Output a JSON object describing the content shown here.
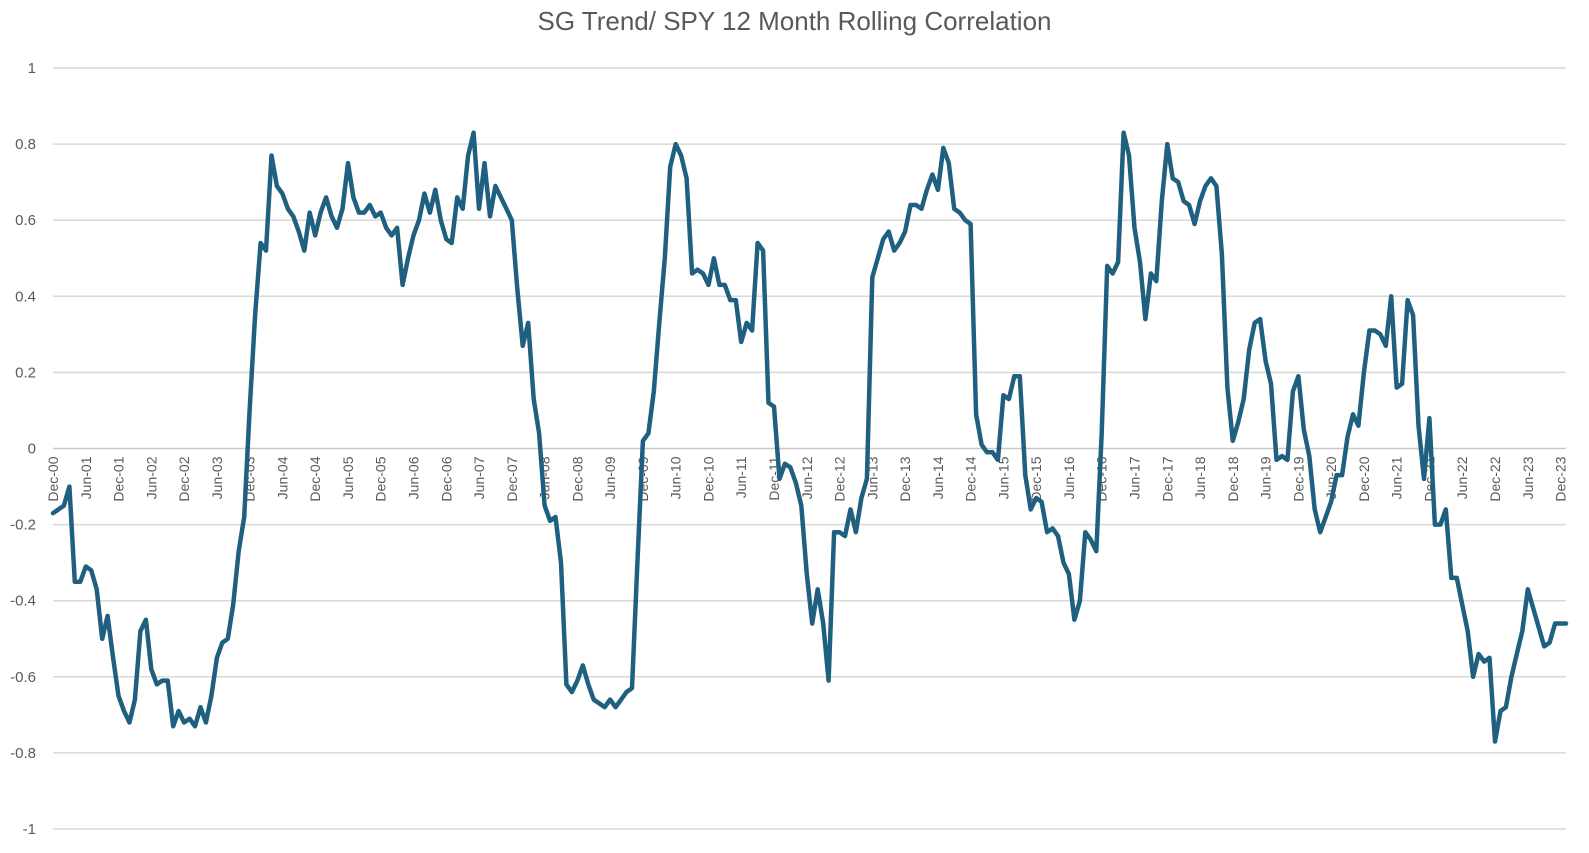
{
  "chart_data": {
    "type": "line",
    "title": "SG Trend/ SPY 12 Month Rolling Correlation",
    "xlabel": "",
    "ylabel": "",
    "ylim": [
      -1,
      1
    ],
    "yticks": [
      "1",
      "0.8",
      "0.6",
      "0.4",
      "0.2",
      "0",
      "-0.2",
      "-0.4",
      "-0.6",
      "-0.8",
      "-1"
    ],
    "xticks": [
      "Dec-00",
      "Jun-01",
      "Dec-01",
      "Jun-02",
      "Dec-02",
      "Jun-03",
      "Dec-03",
      "Jun-04",
      "Dec-04",
      "Jun-05",
      "Dec-05",
      "Jun-06",
      "Dec-06",
      "Jun-07",
      "Dec-07",
      "Jun-08",
      "Dec-08",
      "Jun-09",
      "Dec-09",
      "Jun-10",
      "Dec-10",
      "Jun-11",
      "Dec-11",
      "Jun-12",
      "Dec-12",
      "Jun-13",
      "Dec-13",
      "Jun-14",
      "Dec-14",
      "Jun-15",
      "Dec-15",
      "Jun-16",
      "Dec-16",
      "Jun-17",
      "Dec-17",
      "Jun-18",
      "Dec-18",
      "Jun-19",
      "Dec-19",
      "Jun-20",
      "Dec-20",
      "Jun-21",
      "Dec-21",
      "Jun-22",
      "Dec-22",
      "Jun-23",
      "Dec-23"
    ],
    "grid": true,
    "legend": "none",
    "series": [
      {
        "color": "#1f6080",
        "points": [
          [
            "2000-12",
            -0.17
          ],
          [
            "2001-01",
            -0.16
          ],
          [
            "2001-02",
            -0.15
          ],
          [
            "2001-03",
            -0.1
          ],
          [
            "2001-04",
            -0.35
          ],
          [
            "2001-05",
            -0.35
          ],
          [
            "2001-06",
            -0.31
          ],
          [
            "2001-07",
            -0.32
          ],
          [
            "2001-08",
            -0.37
          ],
          [
            "2001-09",
            -0.5
          ],
          [
            "2001-10",
            -0.44
          ],
          [
            "2001-11",
            -0.55
          ],
          [
            "2001-12",
            -0.65
          ],
          [
            "2002-01",
            -0.69
          ],
          [
            "2002-02",
            -0.72
          ],
          [
            "2002-03",
            -0.66
          ],
          [
            "2002-04",
            -0.48
          ],
          [
            "2002-05",
            -0.45
          ],
          [
            "2002-06",
            -0.58
          ],
          [
            "2002-07",
            -0.62
          ],
          [
            "2002-08",
            -0.61
          ],
          [
            "2002-09",
            -0.61
          ],
          [
            "2002-10",
            -0.73
          ],
          [
            "2002-11",
            -0.69
          ],
          [
            "2002-12",
            -0.72
          ],
          [
            "2003-01",
            -0.71
          ],
          [
            "2003-02",
            -0.73
          ],
          [
            "2003-03",
            -0.68
          ],
          [
            "2003-04",
            -0.72
          ],
          [
            "2003-05",
            -0.65
          ],
          [
            "2003-06",
            -0.55
          ],
          [
            "2003-07",
            -0.51
          ],
          [
            "2003-08",
            -0.5
          ],
          [
            "2003-09",
            -0.41
          ],
          [
            "2003-10",
            -0.27
          ],
          [
            "2003-11",
            -0.18
          ],
          [
            "2003-12",
            0.1
          ],
          [
            "2004-01",
            0.35
          ],
          [
            "2004-02",
            0.54
          ],
          [
            "2004-03",
            0.52
          ],
          [
            "2004-04",
            0.77
          ],
          [
            "2004-05",
            0.69
          ],
          [
            "2004-06",
            0.67
          ],
          [
            "2004-07",
            0.63
          ],
          [
            "2004-08",
            0.61
          ],
          [
            "2004-09",
            0.57
          ],
          [
            "2004-10",
            0.52
          ],
          [
            "2004-11",
            0.62
          ],
          [
            "2004-12",
            0.56
          ],
          [
            "2005-01",
            0.62
          ],
          [
            "2005-02",
            0.66
          ],
          [
            "2005-03",
            0.61
          ],
          [
            "2005-04",
            0.58
          ],
          [
            "2005-05",
            0.63
          ],
          [
            "2005-06",
            0.75
          ],
          [
            "2005-07",
            0.66
          ],
          [
            "2005-08",
            0.62
          ],
          [
            "2005-09",
            0.62
          ],
          [
            "2005-10",
            0.64
          ],
          [
            "2005-11",
            0.61
          ],
          [
            "2005-12",
            0.62
          ],
          [
            "2006-01",
            0.58
          ],
          [
            "2006-02",
            0.56
          ],
          [
            "2006-03",
            0.58
          ],
          [
            "2006-04",
            0.43
          ],
          [
            "2006-05",
            0.5
          ],
          [
            "2006-06",
            0.56
          ],
          [
            "2006-07",
            0.6
          ],
          [
            "2006-08",
            0.67
          ],
          [
            "2006-09",
            0.62
          ],
          [
            "2006-10",
            0.68
          ],
          [
            "2006-11",
            0.6
          ],
          [
            "2006-12",
            0.55
          ],
          [
            "2007-01",
            0.54
          ],
          [
            "2007-02",
            0.66
          ],
          [
            "2007-03",
            0.63
          ],
          [
            "2007-04",
            0.77
          ],
          [
            "2007-05",
            0.83
          ],
          [
            "2007-06",
            0.63
          ],
          [
            "2007-07",
            0.75
          ],
          [
            "2007-08",
            0.61
          ],
          [
            "2007-09",
            0.69
          ],
          [
            "2007-10",
            0.66
          ],
          [
            "2007-11",
            0.63
          ],
          [
            "2007-12",
            0.6
          ],
          [
            "2008-01",
            0.42
          ],
          [
            "2008-02",
            0.27
          ],
          [
            "2008-03",
            0.33
          ],
          [
            "2008-04",
            0.13
          ],
          [
            "2008-05",
            0.04
          ],
          [
            "2008-06",
            -0.15
          ],
          [
            "2008-07",
            -0.19
          ],
          [
            "2008-08",
            -0.18
          ],
          [
            "2008-09",
            -0.3
          ],
          [
            "2008-10",
            -0.62
          ],
          [
            "2008-11",
            -0.64
          ],
          [
            "2008-12",
            -0.61
          ],
          [
            "2009-01",
            -0.57
          ],
          [
            "2009-02",
            -0.62
          ],
          [
            "2009-03",
            -0.66
          ],
          [
            "2009-04",
            -0.67
          ],
          [
            "2009-05",
            -0.68
          ],
          [
            "2009-06",
            -0.66
          ],
          [
            "2009-07",
            -0.68
          ],
          [
            "2009-08",
            -0.66
          ],
          [
            "2009-09",
            -0.64
          ],
          [
            "2009-10",
            -0.63
          ],
          [
            "2009-11",
            -0.3
          ],
          [
            "2009-12",
            0.02
          ],
          [
            "2010-01",
            0.04
          ],
          [
            "2010-02",
            0.15
          ],
          [
            "2010-03",
            0.33
          ],
          [
            "2010-04",
            0.5
          ],
          [
            "2010-05",
            0.74
          ],
          [
            "2010-06",
            0.8
          ],
          [
            "2010-07",
            0.77
          ],
          [
            "2010-08",
            0.71
          ],
          [
            "2010-09",
            0.46
          ],
          [
            "2010-10",
            0.47
          ],
          [
            "2010-11",
            0.46
          ],
          [
            "2010-12",
            0.43
          ],
          [
            "2011-01",
            0.5
          ],
          [
            "2011-02",
            0.43
          ],
          [
            "2011-03",
            0.43
          ],
          [
            "2011-04",
            0.39
          ],
          [
            "2011-05",
            0.39
          ],
          [
            "2011-06",
            0.28
          ],
          [
            "2011-07",
            0.33
          ],
          [
            "2011-08",
            0.31
          ],
          [
            "2011-09",
            0.54
          ],
          [
            "2011-10",
            0.52
          ],
          [
            "2011-11",
            0.12
          ],
          [
            "2011-12",
            0.11
          ],
          [
            "2012-01",
            -0.08
          ],
          [
            "2012-02",
            -0.04
          ],
          [
            "2012-03",
            -0.05
          ],
          [
            "2012-04",
            -0.09
          ],
          [
            "2012-05",
            -0.15
          ],
          [
            "2012-06",
            -0.33
          ],
          [
            "2012-07",
            -0.46
          ],
          [
            "2012-08",
            -0.37
          ],
          [
            "2012-09",
            -0.46
          ],
          [
            "2012-10",
            -0.61
          ],
          [
            "2012-11",
            -0.22
          ],
          [
            "2012-12",
            -0.22
          ],
          [
            "2013-01",
            -0.23
          ],
          [
            "2013-02",
            -0.16
          ],
          [
            "2013-03",
            -0.22
          ],
          [
            "2013-04",
            -0.13
          ],
          [
            "2013-05",
            -0.08
          ],
          [
            "2013-06",
            0.45
          ],
          [
            "2013-07",
            0.5
          ],
          [
            "2013-08",
            0.55
          ],
          [
            "2013-09",
            0.57
          ],
          [
            "2013-10",
            0.52
          ],
          [
            "2013-11",
            0.54
          ],
          [
            "2013-12",
            0.57
          ],
          [
            "2014-01",
            0.64
          ],
          [
            "2014-02",
            0.64
          ],
          [
            "2014-03",
            0.63
          ],
          [
            "2014-04",
            0.68
          ],
          [
            "2014-05",
            0.72
          ],
          [
            "2014-06",
            0.68
          ],
          [
            "2014-07",
            0.79
          ],
          [
            "2014-08",
            0.75
          ],
          [
            "2014-09",
            0.63
          ],
          [
            "2014-10",
            0.62
          ],
          [
            "2014-11",
            0.6
          ],
          [
            "2014-12",
            0.59
          ],
          [
            "2015-01",
            0.09
          ],
          [
            "2015-02",
            0.01
          ],
          [
            "2015-03",
            -0.01
          ],
          [
            "2015-04",
            -0.01
          ],
          [
            "2015-05",
            -0.03
          ],
          [
            "2015-06",
            0.14
          ],
          [
            "2015-07",
            0.13
          ],
          [
            "2015-08",
            0.19
          ],
          [
            "2015-09",
            0.19
          ],
          [
            "2015-10",
            -0.07
          ],
          [
            "2015-11",
            -0.16
          ],
          [
            "2015-12",
            -0.13
          ],
          [
            "2016-01",
            -0.14
          ],
          [
            "2016-02",
            -0.22
          ],
          [
            "2016-03",
            -0.21
          ],
          [
            "2016-04",
            -0.23
          ],
          [
            "2016-05",
            -0.3
          ],
          [
            "2016-06",
            -0.33
          ],
          [
            "2016-07",
            -0.45
          ],
          [
            "2016-08",
            -0.4
          ],
          [
            "2016-09",
            -0.22
          ],
          [
            "2016-10",
            -0.24
          ],
          [
            "2016-11",
            -0.27
          ],
          [
            "2016-12",
            0.04
          ],
          [
            "2017-01",
            0.48
          ],
          [
            "2017-02",
            0.46
          ],
          [
            "2017-03",
            0.49
          ],
          [
            "2017-04",
            0.83
          ],
          [
            "2017-05",
            0.77
          ],
          [
            "2017-06",
            0.58
          ],
          [
            "2017-07",
            0.49
          ],
          [
            "2017-08",
            0.34
          ],
          [
            "2017-09",
            0.46
          ],
          [
            "2017-10",
            0.44
          ],
          [
            "2017-11",
            0.65
          ],
          [
            "2017-12",
            0.8
          ],
          [
            "2018-01",
            0.71
          ],
          [
            "2018-02",
            0.7
          ],
          [
            "2018-03",
            0.65
          ],
          [
            "2018-04",
            0.64
          ],
          [
            "2018-05",
            0.59
          ],
          [
            "2018-06",
            0.65
          ],
          [
            "2018-07",
            0.69
          ],
          [
            "2018-08",
            0.71
          ],
          [
            "2018-09",
            0.69
          ],
          [
            "2018-10",
            0.51
          ],
          [
            "2018-11",
            0.16
          ],
          [
            "2018-12",
            0.02
          ],
          [
            "2019-01",
            0.07
          ],
          [
            "2019-02",
            0.13
          ],
          [
            "2019-03",
            0.26
          ],
          [
            "2019-04",
            0.33
          ],
          [
            "2019-05",
            0.34
          ],
          [
            "2019-06",
            0.23
          ],
          [
            "2019-07",
            0.17
          ],
          [
            "2019-08",
            -0.03
          ],
          [
            "2019-09",
            -0.02
          ],
          [
            "2019-10",
            -0.03
          ],
          [
            "2019-11",
            0.15
          ],
          [
            "2019-12",
            0.19
          ],
          [
            "2020-01",
            0.05
          ],
          [
            "2020-02",
            -0.02
          ],
          [
            "2020-03",
            -0.16
          ],
          [
            "2020-04",
            -0.22
          ],
          [
            "2020-05",
            -0.18
          ],
          [
            "2020-06",
            -0.14
          ],
          [
            "2020-07",
            -0.07
          ],
          [
            "2020-08",
            -0.07
          ],
          [
            "2020-09",
            0.03
          ],
          [
            "2020-10",
            0.09
          ],
          [
            "2020-11",
            0.06
          ],
          [
            "2020-12",
            0.2
          ],
          [
            "2021-01",
            0.31
          ],
          [
            "2021-02",
            0.31
          ],
          [
            "2021-03",
            0.3
          ],
          [
            "2021-04",
            0.27
          ],
          [
            "2021-05",
            0.4
          ],
          [
            "2021-06",
            0.16
          ],
          [
            "2021-07",
            0.17
          ],
          [
            "2021-08",
            0.39
          ],
          [
            "2021-09",
            0.35
          ],
          [
            "2021-10",
            0.06
          ],
          [
            "2021-11",
            -0.08
          ],
          [
            "2021-12",
            0.08
          ],
          [
            "2022-01",
            -0.2
          ],
          [
            "2022-02",
            -0.2
          ],
          [
            "2022-03",
            -0.16
          ],
          [
            "2022-04",
            -0.34
          ],
          [
            "2022-05",
            -0.34
          ],
          [
            "2022-06",
            -0.41
          ],
          [
            "2022-07",
            -0.48
          ],
          [
            "2022-08",
            -0.6
          ],
          [
            "2022-09",
            -0.54
          ],
          [
            "2022-10",
            -0.56
          ],
          [
            "2022-11",
            -0.55
          ],
          [
            "2022-12",
            -0.77
          ],
          [
            "2023-01",
            -0.69
          ],
          [
            "2023-02",
            -0.68
          ],
          [
            "2023-03",
            -0.6
          ],
          [
            "2023-04",
            -0.54
          ],
          [
            "2023-05",
            -0.48
          ],
          [
            "2023-06",
            -0.37
          ],
          [
            "2023-07",
            -0.42
          ],
          [
            "2023-08",
            -0.47
          ],
          [
            "2023-09",
            -0.52
          ],
          [
            "2023-10",
            -0.51
          ],
          [
            "2023-11",
            -0.46
          ],
          [
            "2023-12",
            -0.46
          ],
          [
            "2024-01",
            -0.46
          ]
        ]
      }
    ]
  }
}
